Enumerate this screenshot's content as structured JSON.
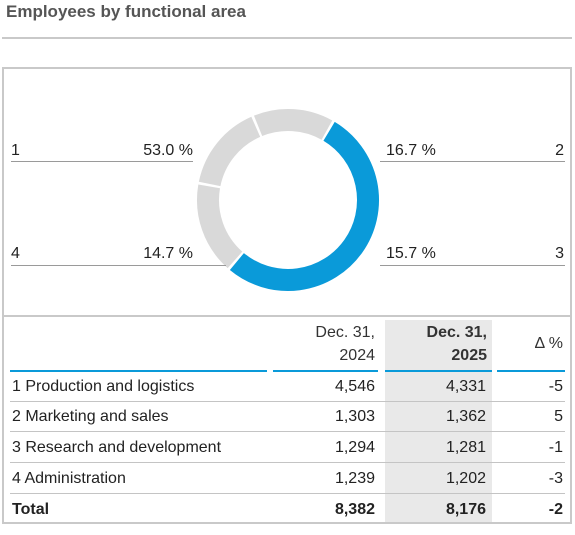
{
  "title": "Employees by functional area",
  "chart_data": {
    "type": "pie",
    "categories": [
      "1",
      "2",
      "3",
      "4"
    ],
    "values": [
      53.0,
      16.7,
      15.7,
      14.7
    ],
    "value_labels": [
      "53.0 %",
      "16.7 %",
      "15.7 %",
      "14.7 %"
    ],
    "colors": {
      "highlight": "#0a9ad9",
      "other": "#d9d9d9"
    },
    "highlighted_category": "1"
  },
  "table": {
    "headers": {
      "col1_line1": "Dec. 31,",
      "col1_line2": "2024",
      "col2_line1": "Dec. 31,",
      "col2_line2": "2025",
      "col3": "Δ %"
    },
    "rows": [
      {
        "label": "1 Production and logistics",
        "y2024": "4,546",
        "y2025": "4,331",
        "delta": "-5"
      },
      {
        "label": "2 Marketing and sales",
        "y2024": "1,303",
        "y2025": "1,362",
        "delta": "5"
      },
      {
        "label": "3 Research and development",
        "y2024": "1,294",
        "y2025": "1,281",
        "delta": "-1"
      },
      {
        "label": "4 Administration",
        "y2024": "1,239",
        "y2025": "1,202",
        "delta": "-3"
      }
    ],
    "total": {
      "label": "Total",
      "y2024": "8,382",
      "y2025": "8,176",
      "delta": "-2"
    }
  }
}
